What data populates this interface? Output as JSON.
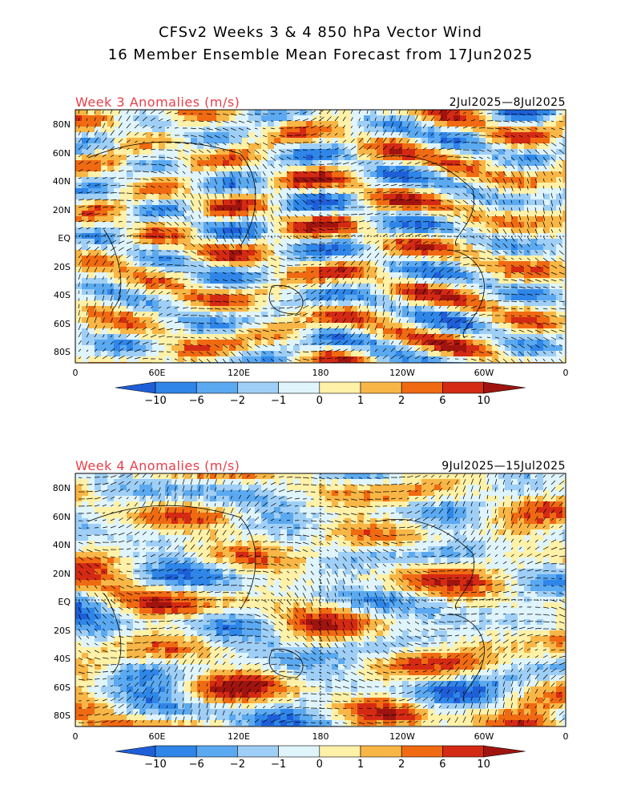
{
  "title": {
    "line1": "CFSv2 Weeks 3 & 4 850 hPa Vector Wind",
    "line2": "16 Member Ensemble Mean Forecast from 17Jun2025"
  },
  "panels": [
    {
      "label": "Week 3 Anomalies (m/s)",
      "dates": "2Jul2025—8Jul2025"
    },
    {
      "label": "Week 4 Anomalies (m/s)",
      "dates": "9Jul2025—15Jul2025"
    }
  ],
  "lat_labels": [
    "80N",
    "60N",
    "40N",
    "20N",
    "EQ",
    "20S",
    "40S",
    "60S",
    "80S"
  ],
  "lon_labels": [
    "0",
    "60E",
    "120E",
    "180",
    "120W",
    "60W",
    "0"
  ],
  "colorbar": {
    "labels": [
      "-10",
      "-6",
      "-2",
      "-1",
      "0",
      "1",
      "2",
      "6",
      "10"
    ],
    "colors": [
      "#1e5fd8",
      "#2f86e8",
      "#5ba9f0",
      "#9fcff6",
      "#dff4fb",
      "#fff1a8",
      "#f8b646",
      "#f06a12",
      "#d42a14",
      "#a01410"
    ]
  }
}
